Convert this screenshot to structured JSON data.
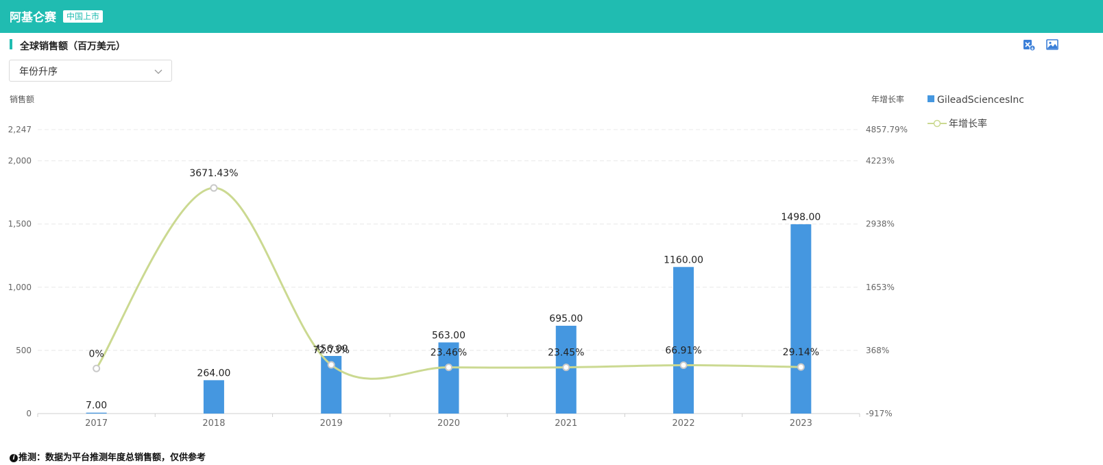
{
  "header": {
    "drug_name": "阿基仑赛",
    "market_badge": "中国上市",
    "bg_color": "#20bcb1"
  },
  "section": {
    "title": "全球销售额（百万美元）",
    "export_excel_icon": "excel-export-icon",
    "download_image_icon": "image-download-icon"
  },
  "sort": {
    "selected": "年份升序"
  },
  "axes": {
    "left_title": "销售额",
    "right_title": "年增长率",
    "left_ticks": [
      "0",
      "500",
      "1,000",
      "1,500",
      "2,000",
      "2,247"
    ],
    "right_ticks": [
      "-917%",
      "368%",
      "1653%",
      "2938%",
      "4223%",
      "4857.79%"
    ]
  },
  "legend": {
    "bar_series": "GileadSciencesInc",
    "line_series": "年增长率"
  },
  "footnote": {
    "prefix": "推测：",
    "text": "数据为平台推测年度总销售额，仅供参考"
  },
  "chart_data": {
    "type": "bar",
    "categories": [
      "2017",
      "2018",
      "2019",
      "2020",
      "2021",
      "2022",
      "2023"
    ],
    "series": [
      {
        "name": "GileadSciencesInc",
        "type": "bar",
        "axis": "left",
        "values": [
          7.0,
          264.0,
          456.0,
          563.0,
          695.0,
          1160.0,
          1498.0
        ],
        "labels": [
          "7.00",
          "264.00",
          "456.00",
          "563.00",
          "695.00",
          "1160.00",
          "1498.00"
        ],
        "color": "#4597e0"
      },
      {
        "name": "年增长率",
        "type": "line",
        "axis": "right",
        "values": [
          0,
          3671.43,
          72.73,
          23.46,
          23.45,
          66.91,
          29.14
        ],
        "labels": [
          "0%",
          "3671.43%",
          "72.73%",
          "23.46%",
          "23.45%",
          "66.91%",
          "29.14%"
        ],
        "color": "#cbd991"
      }
    ],
    "ylim_left": [
      0,
      2247
    ],
    "ylim_right": [
      -917,
      4857.79
    ],
    "grid": true,
    "legend_position": "right"
  }
}
